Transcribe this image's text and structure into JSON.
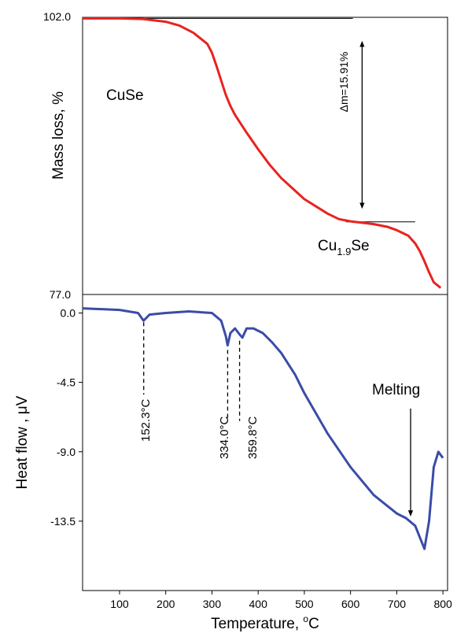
{
  "chart_data": [
    {
      "panel": "top",
      "type": "line",
      "ylabel": "Mass loss, %",
      "ylim": [
        77.0,
        102.0
      ],
      "ytick_labels": [
        "102.0",
        "77.0"
      ],
      "xlim": [
        20,
        810
      ],
      "series": [
        {
          "color": "#e8231f",
          "x": [
            20,
            100,
            150,
            200,
            230,
            260,
            290,
            300,
            310,
            320,
            330,
            340,
            350,
            375,
            400,
            425,
            450,
            500,
            550,
            575,
            600,
            620,
            650,
            680,
            700,
            725,
            740,
            750,
            760,
            770,
            780,
            795
          ],
          "y": [
            101.9,
            101.9,
            101.85,
            101.6,
            101.25,
            100.6,
            99.6,
            98.8,
            97.6,
            96.3,
            95.0,
            94.0,
            93.2,
            91.6,
            90.1,
            88.7,
            87.5,
            85.6,
            84.3,
            83.8,
            83.6,
            83.5,
            83.35,
            83.1,
            82.8,
            82.3,
            81.6,
            80.9,
            80.0,
            79.0,
            78.1,
            77.6
          ]
        }
      ],
      "annotations": {
        "start_phase": "CuSe",
        "end_phase_base": "Cu",
        "end_phase_sub": "1.9",
        "end_phase_tail": "Se",
        "delta_label": "Δm=15.91%"
      },
      "reference_lines": [
        {
          "y": 101.9,
          "x": [
            95,
            605
          ]
        },
        {
          "y": 83.55,
          "x": [
            590,
            740
          ]
        }
      ],
      "arrow": {
        "x": 625,
        "y": [
          99.6,
          85.0
        ]
      }
    },
    {
      "panel": "bottom",
      "type": "line",
      "xlabel_base": "Temperature, ",
      "xlabel_sup": "o",
      "xlabel_tail": "C",
      "ylabel": "Heat flow , μV",
      "xlim": [
        20,
        810
      ],
      "ylim": [
        -18.0,
        1.2
      ],
      "xticks": [
        100,
        200,
        300,
        400,
        500,
        600,
        700,
        800
      ],
      "xtick_labels": [
        "100",
        "200",
        "300",
        "400",
        "500",
        "600",
        "700",
        "800"
      ],
      "yticks": [
        0.0,
        -4.5,
        -9.0,
        -13.5
      ],
      "ytick_labels": [
        "0.0",
        "-4.5",
        "-9.0",
        "-13.5"
      ],
      "series": [
        {
          "color": "#3a4ca8",
          "x": [
            20,
            100,
            140,
            152,
            165,
            200,
            250,
            300,
            320,
            330,
            334,
            340,
            350,
            360,
            366,
            375,
            390,
            410,
            430,
            450,
            480,
            500,
            550,
            600,
            650,
            700,
            720,
            740,
            760,
            770,
            780,
            790,
            800
          ],
          "y": [
            0.3,
            0.2,
            0.0,
            -0.5,
            -0.1,
            0.0,
            0.1,
            0.0,
            -0.5,
            -1.5,
            -2.1,
            -1.3,
            -1.0,
            -1.4,
            -1.6,
            -1.0,
            -1.0,
            -1.3,
            -1.9,
            -2.6,
            -4.0,
            -5.2,
            -7.8,
            -10.0,
            -11.8,
            -13.0,
            -13.3,
            -13.8,
            -15.3,
            -13.5,
            -10.0,
            -9.0,
            -9.4
          ]
        }
      ],
      "annotations": {
        "melting": "Melting",
        "peak1": "152.3°C",
        "peak2": "334.0°C",
        "peak3": "359.8°C"
      },
      "peak_markers": [
        {
          "x": 152.3,
          "from": -0.6,
          "to": -5.3
        },
        {
          "x": 334.0,
          "from": -2.4,
          "to": -7.0
        },
        {
          "x": 359.8,
          "from": -1.8,
          "to": -7.0
        }
      ],
      "melting_arrow": {
        "x": 730,
        "y": [
          -6.2,
          -13.0
        ]
      }
    }
  ]
}
